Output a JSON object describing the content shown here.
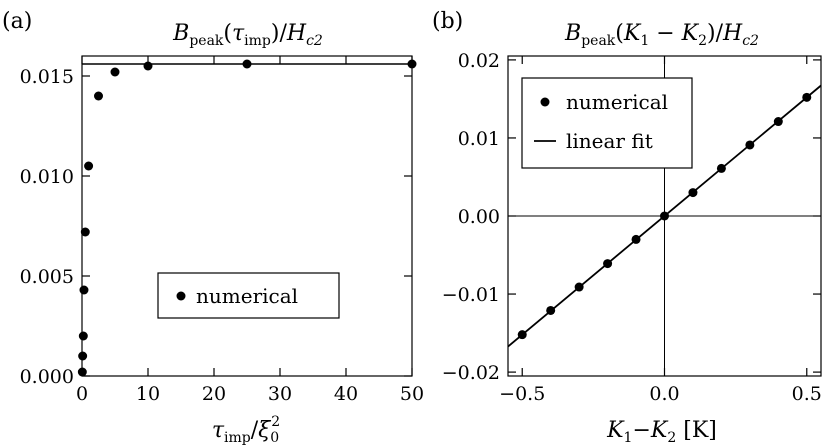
{
  "chart_data": [
    {
      "type": "scatter",
      "panel_label": "(a)",
      "title": "B_peak(τ_imp)/H_c2",
      "title_parts": {
        "main": "B",
        "sub": "peak",
        "arg": "(τ",
        "argsub": "imp",
        "close": ")/H",
        "sub2": "c2"
      },
      "xlabel_parts": {
        "main": "τ",
        "sub": "imp",
        "slash": "/ξ",
        "sub2": "0",
        "sup2": "2"
      },
      "xlim": [
        0,
        50
      ],
      "ylim": [
        0,
        0.016
      ],
      "xticks": [
        0,
        10,
        20,
        30,
        40,
        50
      ],
      "xtick_labels": [
        "0",
        "10",
        "20",
        "30",
        "40",
        "50"
      ],
      "yticks": [
        0.0,
        0.005,
        0.01,
        0.015
      ],
      "ytick_labels": [
        "0.000",
        "0.005",
        "0.010",
        "0.015"
      ],
      "series": [
        {
          "name": "numerical",
          "marker": "circle",
          "points": [
            [
              0.05,
              0.0002
            ],
            [
              0.1,
              0.001
            ],
            [
              0.2,
              0.002
            ],
            [
              0.3,
              0.0043
            ],
            [
              0.5,
              0.0072
            ],
            [
              1.0,
              0.0105
            ],
            [
              2.5,
              0.014
            ],
            [
              5.0,
              0.0152
            ],
            [
              10.0,
              0.0155
            ],
            [
              25.0,
              0.0156
            ],
            [
              50.0,
              0.0156
            ]
          ]
        }
      ],
      "hline": 0.0156,
      "legend": {
        "placement": "lower-center",
        "entries": [
          {
            "label": "numerical",
            "marker": "circle"
          }
        ]
      }
    },
    {
      "type": "scatter",
      "panel_label": "(b)",
      "title": "B_peak(K_1 − K_2)/H_c2",
      "title_parts": {
        "main": "B",
        "sub": "peak",
        "open": "(K",
        "s1": "1",
        "minus": " − K",
        "s2": "2",
        "close": ")/H",
        "sub2": "c2"
      },
      "xlabel_parts": {
        "a": "K",
        "s1": "1",
        "mid": "−K",
        "s2": "2",
        "unit": " [K]"
      },
      "xlim": [
        -0.55,
        0.55
      ],
      "ylim": [
        -0.0205,
        0.0205
      ],
      "xticks": [
        -0.5,
        0,
        0.5
      ],
      "xtick_labels": [
        "−0.5",
        "0.0",
        "0.5"
      ],
      "yticks": [
        -0.02,
        -0.01,
        0.0,
        0.01,
        0.02
      ],
      "ytick_labels": [
        "−0.02",
        "−0.01",
        "0.00",
        "0.01",
        "0.02"
      ],
      "series": [
        {
          "name": "numerical",
          "marker": "circle",
          "points": [
            [
              -0.5,
              -0.0152
            ],
            [
              -0.4,
              -0.0121
            ],
            [
              -0.3,
              -0.0091
            ],
            [
              -0.2,
              -0.0061
            ],
            [
              -0.1,
              -0.003
            ],
            [
              0.0,
              0.0
            ],
            [
              0.1,
              0.003
            ],
            [
              0.2,
              0.0061
            ],
            [
              0.3,
              0.0091
            ],
            [
              0.4,
              0.0121
            ],
            [
              0.5,
              0.0152
            ]
          ]
        },
        {
          "name": "linear fit",
          "type": "line",
          "slope": 0.0304,
          "intercept": 0.0
        }
      ],
      "zero_lines": true,
      "legend": {
        "placement": "top-left",
        "entries": [
          {
            "label": "numerical",
            "marker": "circle"
          },
          {
            "label": "linear fit",
            "marker": "line"
          }
        ]
      }
    }
  ]
}
